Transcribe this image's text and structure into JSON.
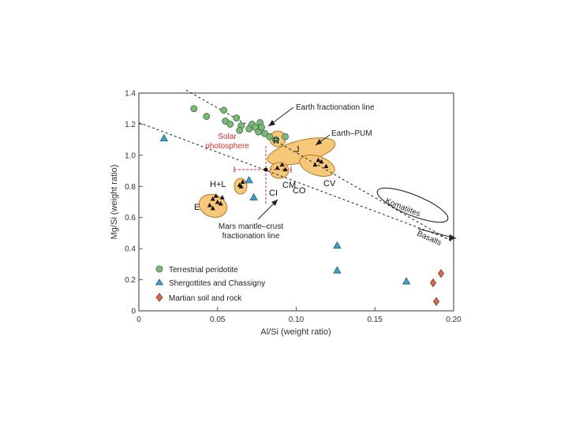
{
  "chart_data": {
    "type": "scatter",
    "xlabel": "Al/Si (weight ratio)",
    "ylabel": "Mg/Si (weight ratio)",
    "xlim": [
      0,
      0.2
    ],
    "ylim": [
      0,
      1.4
    ],
    "x_ticks": [
      0,
      0.05,
      0.1,
      0.15,
      0.2
    ],
    "x_tick_labels": [
      "0",
      "0.05",
      "0.10",
      "0.15",
      "0.20"
    ],
    "y_ticks": [
      0,
      0.2,
      0.4,
      0.6,
      0.8,
      1.0,
      1.2,
      1.4
    ],
    "y_tick_labels": [
      "0",
      "0.2",
      "0.4",
      "0.6",
      "0.8",
      "1.0",
      "1.2",
      "1.4"
    ],
    "grid": false,
    "legend_position": "bottom-left",
    "series": [
      {
        "name": "Terrestrial peridotite",
        "marker": "circle",
        "color": "#7cb87a",
        "points": [
          [
            0.035,
            1.3
          ],
          [
            0.043,
            1.25
          ],
          [
            0.054,
            1.29
          ],
          [
            0.055,
            1.22
          ],
          [
            0.058,
            1.2
          ],
          [
            0.062,
            1.24
          ],
          [
            0.065,
            1.19
          ],
          [
            0.064,
            1.16
          ],
          [
            0.07,
            1.17
          ],
          [
            0.072,
            1.2
          ],
          [
            0.074,
            1.18
          ],
          [
            0.077,
            1.21
          ],
          [
            0.076,
            1.15
          ],
          [
            0.078,
            1.18
          ],
          [
            0.08,
            1.14
          ],
          [
            0.083,
            1.12
          ],
          [
            0.087,
            1.1
          ],
          [
            0.093,
            1.12
          ]
        ]
      },
      {
        "name": "Shergottites and Chassigny",
        "marker": "triangle",
        "color": "#3fa0c8",
        "points": [
          [
            0.016,
            1.11
          ],
          [
            0.07,
            0.84
          ],
          [
            0.073,
            0.73
          ],
          [
            0.126,
            0.42
          ],
          [
            0.126,
            0.26
          ],
          [
            0.17,
            0.19
          ]
        ]
      },
      {
        "name": "Martian soil and rock",
        "marker": "diamond",
        "color": "#d46a50",
        "points": [
          [
            0.192,
            0.24
          ],
          [
            0.187,
            0.18
          ],
          [
            0.189,
            0.06
          ]
        ]
      }
    ],
    "meteorite_groups": [
      {
        "label": "E",
        "center": [
          0.049,
          0.7
        ],
        "points": [
          [
            0.045,
            0.68
          ],
          [
            0.047,
            0.72
          ],
          [
            0.049,
            0.74
          ],
          [
            0.05,
            0.7
          ],
          [
            0.052,
            0.69
          ],
          [
            0.047,
            0.66
          ],
          [
            0.053,
            0.73
          ]
        ]
      },
      {
        "label": "H+L",
        "center": [
          0.065,
          0.82
        ],
        "points": [
          [
            0.064,
            0.81
          ],
          [
            0.066,
            0.83
          ],
          [
            0.065,
            0.8
          ]
        ]
      },
      {
        "label": "CM",
        "center": [
          0.09,
          0.93
        ],
        "points": [
          [
            0.088,
            0.92
          ],
          [
            0.091,
            0.94
          ],
          [
            0.093,
            0.91
          ]
        ]
      },
      {
        "label": "CV",
        "center": [
          0.115,
          0.95
        ],
        "points": [
          [
            0.112,
            0.94
          ],
          [
            0.116,
            0.96
          ],
          [
            0.119,
            0.93
          ],
          [
            0.114,
            0.97
          ]
        ]
      }
    ],
    "fields": [
      {
        "label": "J",
        "center": [
          0.103,
          1.05
        ]
      },
      {
        "label": "R",
        "center": [
          0.088,
          1.12
        ]
      },
      {
        "label": "Komatiites",
        "center": [
          0.157,
          0.7
        ]
      }
    ],
    "reference_lines": [
      {
        "label": "Earth fractionation line",
        "style": "dashed",
        "from": [
          0.03,
          1.42
        ],
        "to": [
          0.2,
          0.44
        ]
      },
      {
        "label": "Mars mantle–crust fractionation line",
        "style": "dashed",
        "from": [
          0.0,
          1.21
        ],
        "to": [
          0.2,
          0.45
        ]
      }
    ],
    "solar_photosphere": {
      "label": "Solar photosphere",
      "x": 0.081,
      "y": 0.93,
      "xerr": 0.018,
      "yerr": 0.15
    },
    "annotations": [
      {
        "text": "Earth fractionation line",
        "key": "earth_line"
      },
      {
        "text": "Earth–PUM",
        "key": "earth_pum"
      },
      {
        "text": "Solar photosphere",
        "key": "solar"
      },
      {
        "text": "CI",
        "key": "ci"
      },
      {
        "text": "CO",
        "key": "co"
      },
      {
        "text": "Basalts",
        "key": "basalts"
      },
      {
        "text": "Mars mantle–crust fractionation line",
        "key": "mars_line"
      }
    ]
  },
  "labels": {
    "earth_line": "Earth fractionation line",
    "earth_pum": "Earth–PUM",
    "solar_line1": "Solar",
    "solar_line2": "photosphere",
    "mars_line1": "Mars mantle–crust",
    "mars_line2": "fractionation line",
    "basalts": "Basalts",
    "komatiites": "Komatiites",
    "e": "E",
    "hl": "H+L",
    "cm": "CM",
    "ci": "CI",
    "co": "CO",
    "cv": "CV",
    "j": "J",
    "r": "R"
  },
  "colors": {
    "frame": "#555555",
    "field_fill": "#f7c77a",
    "field_stroke": "#b07a2a",
    "solar": "#d03030"
  }
}
